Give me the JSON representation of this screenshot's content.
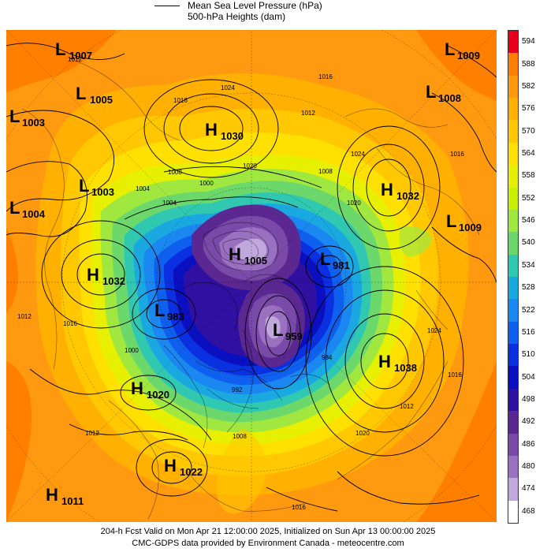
{
  "legend": {
    "mslp_label": "Mean Sea Level Pressure (hPa)",
    "heights_label": "500-hPa Heights (dam)"
  },
  "colorbar": {
    "levels": [
      "594",
      "588",
      "582",
      "576",
      "570",
      "564",
      "558",
      "552",
      "546",
      "540",
      "534",
      "528",
      "522",
      "516",
      "510",
      "504",
      "498",
      "492",
      "486",
      "480",
      "474",
      "468"
    ],
    "colors": [
      "#e8001a",
      "#ff7f00",
      "#ff9a10",
      "#ffb000",
      "#ffc800",
      "#ffe000",
      "#e6f000",
      "#c8f000",
      "#a0e840",
      "#6cd86c",
      "#30c8b0",
      "#1aa8e0",
      "#1a88f0",
      "#1060f0",
      "#0a30e0",
      "#0a10c0",
      "#3010a0",
      "#5a2890",
      "#7a4aa8",
      "#9a70c0",
      "#c0a8dc",
      "#ffffff"
    ]
  },
  "pressure_centers": [
    {
      "type": "L",
      "value": "1007"
    },
    {
      "type": "L",
      "value": "1005"
    },
    {
      "type": "L",
      "value": "1003"
    },
    {
      "type": "H",
      "value": "1030"
    },
    {
      "type": "L",
      "value": "1003"
    },
    {
      "type": "L",
      "value": "1004"
    },
    {
      "type": "H",
      "value": "1032"
    },
    {
      "type": "L",
      "value": "983"
    },
    {
      "type": "H",
      "value": "1020"
    },
    {
      "type": "H",
      "value": "1022"
    },
    {
      "type": "H",
      "value": "1011"
    },
    {
      "type": "H",
      "value": "1005"
    },
    {
      "type": "L",
      "value": "981"
    },
    {
      "type": "L",
      "value": "959"
    },
    {
      "type": "H",
      "value": "1038"
    },
    {
      "type": "L",
      "value": "1009"
    },
    {
      "type": "L",
      "value": "1008"
    },
    {
      "type": "H",
      "value": "1032"
    },
    {
      "type": "L",
      "value": "1009"
    }
  ],
  "isobar_labels": [
    "1012",
    "1024",
    "1016",
    "1008",
    "1000",
    "1004",
    "1020",
    "1012",
    "1016",
    "1024",
    "1020",
    "1016",
    "1004",
    "1008",
    "1012",
    "1016",
    "1012",
    "1020",
    "1016",
    "1024",
    "1016",
    "1008",
    "992",
    "984",
    "1000",
    "1012"
  ],
  "footer": {
    "line1": "204-h Fcst Valid on Mon Apr 21 12:00:00 2025, Initialized on Sun Apr 13 00:00:00 2025",
    "line2": "CMC-GDPS data provided by Environment Canada - meteocentre.com"
  }
}
